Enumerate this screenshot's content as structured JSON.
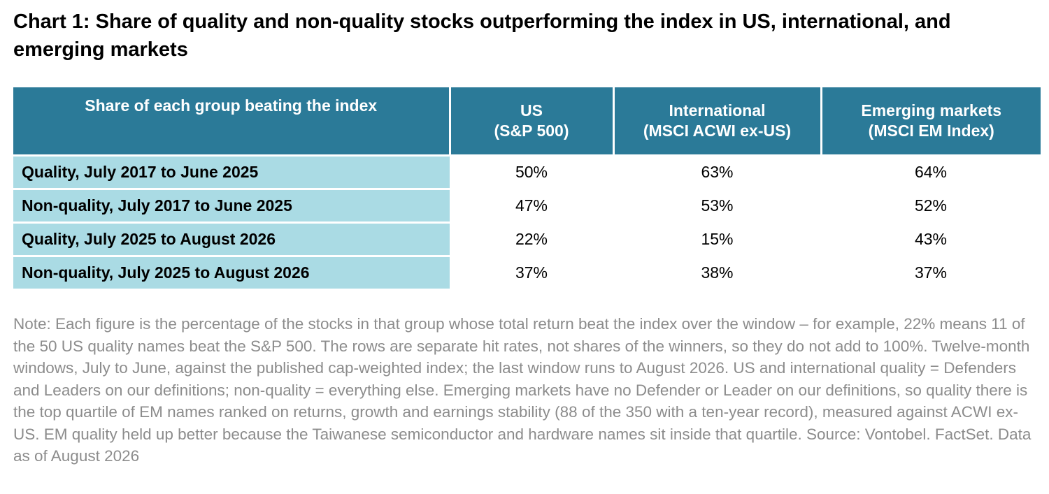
{
  "title": "Chart 1: Share of quality and non-quality stocks outperforming the index in US, international, and emerging markets",
  "chart_data": {
    "type": "table",
    "title": "Chart 1: Share of quality and non-quality stocks outperforming the index in US, international, and emerging markets",
    "header": {
      "row_label": "Share of each group beating the index",
      "columns": [
        "US\n(S&P 500)",
        "International\n(MSCI ACWI ex-US)",
        "Emerging markets\n(MSCI  EM Index)"
      ]
    },
    "rows": [
      {
        "label": "Quality, July 2017 to June 2025",
        "values": [
          "50%",
          "63%",
          "64%"
        ]
      },
      {
        "label": "Non-quality, July 2017 to June 2025",
        "values": [
          "47%",
          "53%",
          "52%"
        ]
      },
      {
        "label": "Quality, July 2025 to August 2026",
        "values": [
          "22%",
          "15%",
          "43%"
        ]
      },
      {
        "label": "Non-quality, July 2025 to August 2026",
        "values": [
          "37%",
          "38%",
          "37%"
        ]
      }
    ],
    "colors": {
      "header_bg": "#2b7a98",
      "row_label_bg": "#aadbe4",
      "note_text": "#8c8c8c"
    }
  },
  "note": "Note: Each figure is the percentage of the stocks in that group whose total return beat the index over the window – for example, 22% means 11 of the 50 US quality names beat the S&P 500. The rows are separate hit rates, not shares of the winners, so they do not add to 100%. Twelve-month windows, July to June, against the published cap-weighted index; the last window runs to August 2026. US and international quality = Defenders and Leaders on our definitions; non-quality = everything else. Emerging markets have no Defender or Leader on our definitions, so quality there is the top quartile of EM names ranked on returns, growth and earnings stability (88 of the 350 with a ten-year record), measured against ACWI ex-US. EM quality held up better because the Taiwanese semiconductor and hardware names sit inside that quartile. Source: Vontobel. FactSet. Data as of August 2026"
}
